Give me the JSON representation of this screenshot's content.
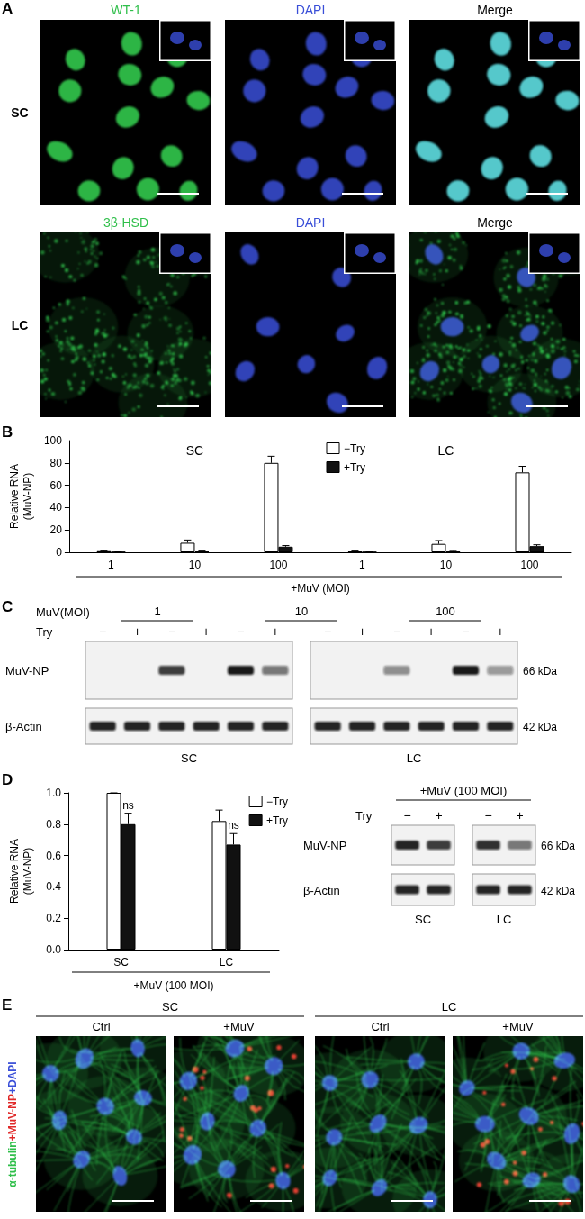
{
  "chart_data": [
    {
      "type": "bar",
      "title": "B",
      "ylabel": "Relative RNA\n(MuV-NP)",
      "xlabel": "+MuV (MOI)",
      "categories": [
        "1",
        "10",
        "100",
        "1",
        "10",
        "100"
      ],
      "annotations": [
        "SC",
        "LC"
      ],
      "series": [
        {
          "name": "−Try",
          "color": "#ffffff",
          "values": [
            1,
            8.5,
            80,
            0.8,
            7.5,
            71.5
          ],
          "errors": [
            0.3,
            2.5,
            6,
            0.3,
            3,
            5.5
          ]
        },
        {
          "name": "+Try",
          "color": "#111111",
          "values": [
            0.3,
            0.8,
            5,
            0.2,
            0.6,
            5.5
          ],
          "errors": [
            0.1,
            0.3,
            1,
            0.1,
            0.3,
            1.2
          ]
        }
      ],
      "ylim": [
        0,
        100
      ],
      "yticks": [
        0,
        20,
        40,
        60,
        80,
        100
      ],
      "grid": false,
      "legend": "top"
    },
    {
      "type": "bar",
      "title": "D",
      "ylabel": "Relative RNA\n(MuV-NP)",
      "xlabel": "+MuV (100 MOI)",
      "categories": [
        "SC",
        "LC"
      ],
      "series": [
        {
          "name": "−Try",
          "color": "#ffffff",
          "values": [
            1.0,
            0.82
          ],
          "errors": [
            0,
            0.07
          ]
        },
        {
          "name": "+Try",
          "color": "#111111",
          "values": [
            0.8,
            0.67
          ],
          "errors": [
            0.07,
            0.07
          ],
          "annotations": [
            "ns",
            "ns"
          ]
        }
      ],
      "ylim": [
        0,
        1
      ],
      "yticks": [
        {
          "value": 0,
          "label": "0.0"
        },
        {
          "value": 0.2,
          "label": "0.2"
        },
        {
          "value": 0.4,
          "label": "0.4"
        },
        {
          "value": 0.6,
          "label": "0.6"
        },
        {
          "value": 0.8,
          "label": "0.8"
        },
        {
          "value": 1,
          "label": "1.0"
        }
      ],
      "grid": false,
      "legend": "top-right"
    }
  ],
  "figure": {
    "A": {
      "label": "A",
      "rows": [
        {
          "name": "SC",
          "columns": [
            {
              "text": "WT-1",
              "color": "#2fbf4a"
            },
            {
              "text": "DAPI",
              "color": "#3a4fd8"
            },
            {
              "text": "Merge",
              "color": "#000000"
            }
          ]
        },
        {
          "name": "LC",
          "columns": [
            {
              "text": "3β-HSD",
              "color": "#2fbf4a"
            },
            {
              "text": "DAPI",
              "color": "#3a4fd8"
            },
            {
              "text": "Merge",
              "color": "#000000"
            }
          ]
        }
      ]
    },
    "C": {
      "label": "C",
      "moi_label": "MuV(MOI)",
      "moi": [
        "1",
        "10",
        "100"
      ],
      "try_label": "Try",
      "rows": [
        {
          "name": "MuV-NP",
          "size": "66 kDa"
        },
        {
          "name": "β-Actin",
          "size": "42 kDa"
        }
      ],
      "blots": [
        {
          "name": "SC",
          "lanes": [
            "−",
            "+",
            "−",
            "+",
            "−",
            "+"
          ],
          "bands": [
            [
              0,
              0,
              0.8,
              0,
              0.95,
              0.55
            ],
            [
              0.9,
              0.9,
              0.9,
              0.9,
              0.9,
              0.9
            ]
          ]
        },
        {
          "name": "LC",
          "lanes": [
            "−",
            "+",
            "−",
            "+",
            "−",
            "+"
          ],
          "bands": [
            [
              0,
              0,
              0.45,
              0,
              0.95,
              0.4
            ],
            [
              0.9,
              0.9,
              0.9,
              0.9,
              0.9,
              0.9
            ]
          ]
        }
      ]
    },
    "D_blot": {
      "label": "+MuV (100 MOI)",
      "try_label": "Try",
      "rows": [
        {
          "name": "MuV-NP",
          "size": "66 kDa"
        },
        {
          "name": "β-Actin",
          "size": "42 kDa"
        }
      ],
      "blots": [
        {
          "name": "SC",
          "lanes": [
            "−",
            "+"
          ],
          "bands": [
            [
              0.9,
              0.8
            ],
            [
              0.9,
              0.9
            ]
          ]
        },
        {
          "name": "LC",
          "lanes": [
            "−",
            "+"
          ],
          "bands": [
            [
              0.85,
              0.55
            ],
            [
              0.9,
              0.9
            ]
          ]
        }
      ]
    },
    "E": {
      "label": "E",
      "stain": [
        {
          "text": "α-tubulin",
          "color": "#2fbf4a"
        },
        {
          "text": "+MuV-NP",
          "color": "#e02828"
        },
        {
          "text": "+DAPI",
          "color": "#3a4fd8"
        }
      ],
      "groups": [
        {
          "name": "SC",
          "conditions": [
            "Ctrl",
            "+MuV"
          ]
        },
        {
          "name": "LC",
          "conditions": [
            "Ctrl",
            "+MuV"
          ]
        }
      ]
    }
  }
}
